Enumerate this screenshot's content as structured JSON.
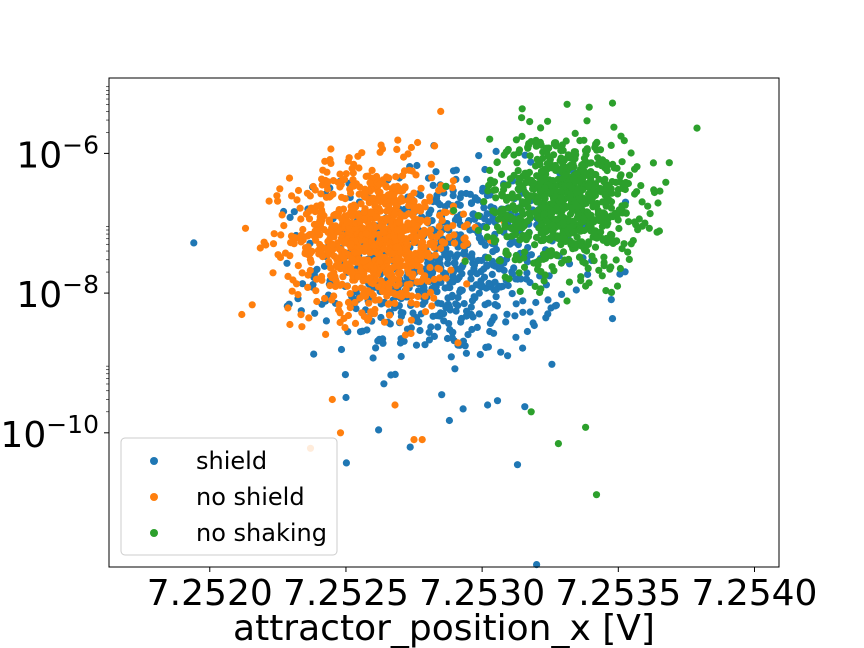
{
  "chart_data": {
    "type": "scatter",
    "title": "",
    "xlabel": "attractor_position_x [V]",
    "ylabel": "",
    "x_scale": "linear",
    "y_scale": "log",
    "xlim": [
      7.25163,
      7.25409
    ],
    "ylim": [
      1.2e-12,
      1.2e-05
    ],
    "x_ticks": [
      7.252,
      7.2525,
      7.253,
      7.2535,
      7.254
    ],
    "x_tick_labels": [
      "7.2520",
      "7.2525",
      "7.2530",
      "7.2535",
      "7.2540"
    ],
    "y_ticks": [
      1e-10,
      1e-08,
      1e-06
    ],
    "y_tick_labels": [
      {
        "base": "10",
        "exp": "−10"
      },
      {
        "base": "10",
        "exp": "−8"
      },
      {
        "base": "10",
        "exp": "−6"
      }
    ],
    "grid": false,
    "legend_position": "lower-left",
    "series": [
      {
        "name": "shield",
        "color": "#1f77b4",
        "x_center": 7.25285,
        "x_spread": 0.0003,
        "log_y_center": -7.6,
        "log_y_spread": 0.9,
        "n": 700,
        "points": [
          [
            7.2525,
            3.2e-10
          ],
          [
            7.25288,
            1.5e-10
          ],
          [
            7.25313,
            3.5e-11
          ],
          [
            7.2532,
            1.3e-12
          ],
          [
            7.25293,
            2.2e-10
          ],
          [
            7.25262,
            1.1e-10
          ],
          [
            7.25302,
            2.5e-10
          ]
        ]
      },
      {
        "name": "no shield",
        "color": "#ff7f0e",
        "x_center": 7.2526,
        "x_spread": 0.0002,
        "log_y_center": -7.2,
        "log_y_spread": 0.7,
        "n": 900,
        "points": [
          [
            7.25237,
            6e-11
          ],
          [
            7.25248,
            1e-10
          ],
          [
            7.25275,
            8e-11
          ],
          [
            7.25278,
            8e-11
          ],
          [
            7.25268,
            2.5e-10
          ],
          [
            7.25245,
            3e-10
          ]
        ]
      },
      {
        "name": "no shaking",
        "color": "#2ca02c",
        "x_center": 7.2533,
        "x_spread": 0.00018,
        "log_y_center": -6.7,
        "log_y_spread": 0.65,
        "n": 800,
        "points": [
          [
            7.25342,
            1.3e-11
          ],
          [
            7.25338,
            1.2e-10
          ],
          [
            7.25328,
            7e-11
          ],
          [
            7.25318,
            2e-10
          ],
          [
            7.25363,
            3e-07
          ]
        ]
      }
    ]
  }
}
